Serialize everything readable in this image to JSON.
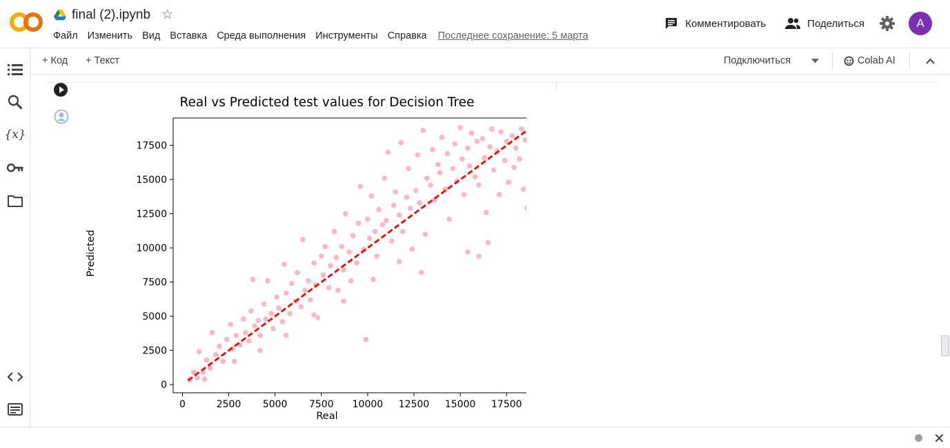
{
  "app": {
    "logo_text": "CO",
    "doc_title": "final (2).ipynb"
  },
  "menu": {
    "items": [
      "Файл",
      "Изменить",
      "Вид",
      "Вставка",
      "Среда выполнения",
      "Инструменты",
      "Справка"
    ],
    "last_saved": "Последнее сохранение: 5 марта"
  },
  "actions": {
    "comment_label": "Комментировать",
    "share_label": "Поделиться",
    "avatar_letter": "A",
    "avatar_color": "#7b2fb5"
  },
  "toolbar": {
    "add_code": "+ Код",
    "add_text": "+ Текст",
    "connect": "Подключиться",
    "colab_ai": "Colab AI"
  },
  "sidebar": {
    "icons": [
      "toc-icon",
      "search-icon",
      "variables-icon",
      "secrets-key-icon",
      "folder-icon",
      "code-snippets-icon",
      "terminal-icon"
    ]
  },
  "chart_data": {
    "type": "scatter",
    "title": "Real vs Predicted test values for Decision Tree",
    "xlabel": "Real",
    "ylabel": "Predicted",
    "xlim": [
      -500,
      19500
    ],
    "ylim": [
      -600,
      19500
    ],
    "xticks": [
      0,
      2500,
      5000,
      7500,
      10000,
      12500,
      15000,
      17500
    ],
    "yticks": [
      0,
      2500,
      5000,
      7500,
      10000,
      12500,
      15000,
      17500
    ],
    "point_color": "#ffb6c1",
    "line_color": "#ff0000",
    "reference_line": {
      "x": [
        300,
        18800
      ],
      "y": [
        300,
        18800
      ]
    },
    "series": [
      {
        "values": [
          [
            400,
            350
          ],
          [
            600,
            900
          ],
          [
            800,
            500
          ],
          [
            900,
            2400
          ],
          [
            1100,
            900
          ],
          [
            1300,
            1800
          ],
          [
            1500,
            1200
          ],
          [
            1600,
            3800
          ],
          [
            1800,
            2200
          ],
          [
            2000,
            2800
          ],
          [
            2200,
            1700
          ],
          [
            2400,
            3300
          ],
          [
            2600,
            4400
          ],
          [
            2700,
            2600
          ],
          [
            2900,
            3600
          ],
          [
            3100,
            2900
          ],
          [
            3300,
            4800
          ],
          [
            3400,
            3800
          ],
          [
            3600,
            3200
          ],
          [
            3700,
            5400
          ],
          [
            3800,
            7700
          ],
          [
            3900,
            4300
          ],
          [
            4100,
            4700
          ],
          [
            4200,
            3600
          ],
          [
            4400,
            5900
          ],
          [
            4500,
            4800
          ],
          [
            4600,
            7600
          ],
          [
            4800,
            5200
          ],
          [
            4900,
            4100
          ],
          [
            5100,
            6400
          ],
          [
            5200,
            5600
          ],
          [
            5400,
            4600
          ],
          [
            5500,
            8800
          ],
          [
            5600,
            6700
          ],
          [
            5800,
            5200
          ],
          [
            5900,
            7400
          ],
          [
            6100,
            6100
          ],
          [
            6200,
            8200
          ],
          [
            6400,
            5700
          ],
          [
            6500,
            10600
          ],
          [
            6600,
            6900
          ],
          [
            6800,
            7600
          ],
          [
            6900,
            6200
          ],
          [
            7100,
            8900
          ],
          [
            7200,
            7300
          ],
          [
            7300,
            4900
          ],
          [
            7500,
            9400
          ],
          [
            7600,
            8000
          ],
          [
            7700,
            10100
          ],
          [
            7900,
            7100
          ],
          [
            8000,
            8700
          ],
          [
            8200,
            11200
          ],
          [
            8300,
            9300
          ],
          [
            8400,
            6900
          ],
          [
            8600,
            10100
          ],
          [
            8700,
            8400
          ],
          [
            8800,
            12500
          ],
          [
            9000,
            9700
          ],
          [
            9100,
            7600
          ],
          [
            9200,
            10900
          ],
          [
            9400,
            8900
          ],
          [
            9500,
            11800
          ],
          [
            9600,
            14500
          ],
          [
            9800,
            9900
          ],
          [
            9900,
            3300
          ],
          [
            10000,
            12100
          ],
          [
            10100,
            10700
          ],
          [
            10200,
            13800
          ],
          [
            10400,
            11200
          ],
          [
            10500,
            9400
          ],
          [
            10600,
            12800
          ],
          [
            10800,
            11700
          ],
          [
            10900,
            15100
          ],
          [
            11000,
            12000
          ],
          [
            11100,
            17000
          ],
          [
            11300,
            10500
          ],
          [
            11400,
            13100
          ],
          [
            11500,
            14100
          ],
          [
            11700,
            12400
          ],
          [
            11800,
            17700
          ],
          [
            11900,
            11200
          ],
          [
            12100,
            13700
          ],
          [
            12200,
            15800
          ],
          [
            12300,
            12900
          ],
          [
            12400,
            9900
          ],
          [
            12600,
            14200
          ],
          [
            12700,
            16800
          ],
          [
            12800,
            13300
          ],
          [
            13000,
            18600
          ],
          [
            13100,
            11000
          ],
          [
            13200,
            15100
          ],
          [
            13400,
            14600
          ],
          [
            13500,
            17200
          ],
          [
            13600,
            13500
          ],
          [
            13800,
            16100
          ],
          [
            13900,
            15500
          ],
          [
            14000,
            18100
          ],
          [
            14200,
            14300
          ],
          [
            14300,
            16900
          ],
          [
            14400,
            12100
          ],
          [
            14600,
            15800
          ],
          [
            14700,
            17600
          ],
          [
            14800,
            14900
          ],
          [
            15000,
            18800
          ],
          [
            15100,
            16500
          ],
          [
            15200,
            13900
          ],
          [
            15400,
            17300
          ],
          [
            15500,
            16000
          ],
          [
            15600,
            18400
          ],
          [
            15800,
            15200
          ],
          [
            15900,
            17800
          ],
          [
            16000,
            14600
          ],
          [
            16200,
            18000
          ],
          [
            16300,
            16600
          ],
          [
            16400,
            12600
          ],
          [
            16600,
            17400
          ],
          [
            16700,
            18700
          ],
          [
            16800,
            15700
          ],
          [
            17000,
            17100
          ],
          [
            17100,
            13900
          ],
          [
            17200,
            18500
          ],
          [
            17400,
            16400
          ],
          [
            17500,
            17800
          ],
          [
            17600,
            14800
          ],
          [
            17800,
            18200
          ],
          [
            17900,
            15900
          ],
          [
            18000,
            17300
          ],
          [
            18200,
            16500
          ],
          [
            18300,
            18700
          ],
          [
            18400,
            14300
          ],
          [
            18500,
            17900
          ],
          [
            18600,
            12900
          ],
          [
            18700,
            18300
          ],
          [
            16000,
            9400
          ],
          [
            16500,
            10400
          ],
          [
            15400,
            9700
          ],
          [
            12900,
            8200
          ],
          [
            11700,
            9000
          ],
          [
            10300,
            7700
          ],
          [
            8700,
            6100
          ],
          [
            7100,
            5100
          ],
          [
            5600,
            3600
          ],
          [
            4200,
            2500
          ],
          [
            2800,
            1700
          ],
          [
            1200,
            400
          ]
        ]
      }
    ]
  }
}
